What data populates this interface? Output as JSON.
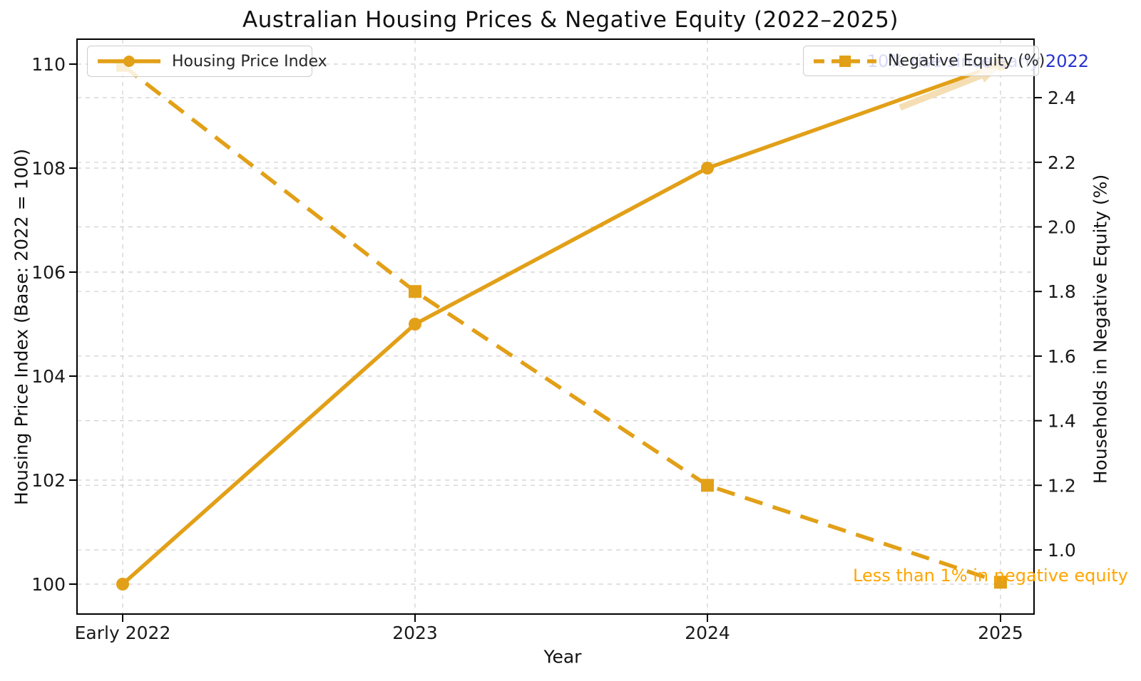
{
  "chart_data": {
    "type": "line",
    "title": "Australian Housing Prices & Negative Equity (2022–2025)",
    "xlabel": "Year",
    "categories": [
      "Early 2022",
      "2023",
      "2024",
      "2025"
    ],
    "series": [
      {
        "name": "Housing Price Index",
        "axis": "left",
        "line_style": "solid",
        "marker": "circle",
        "values": [
          100,
          105,
          108,
          110
        ]
      },
      {
        "name": "Negative Equity (%)",
        "axis": "right",
        "line_style": "dashed",
        "marker": "square",
        "values": [
          2.5,
          1.8,
          1.2,
          0.9
        ]
      }
    ],
    "left_axis": {
      "label": "Housing Price Index (Base: 2022 = 100)",
      "tick_labels": [
        "100",
        "102",
        "104",
        "106",
        "108",
        "110"
      ],
      "ticks": [
        100,
        102,
        104,
        106,
        108,
        110
      ],
      "range": [
        99.3,
        110.5
      ]
    },
    "right_axis": {
      "label": "Households in Negative Equity (%)",
      "tick_labels": [
        "1.0",
        "1.2",
        "1.4",
        "1.6",
        "1.8",
        "2.0",
        "2.2",
        "2.4"
      ],
      "ticks": [
        1.0,
        1.2,
        1.4,
        1.6,
        1.8,
        2.0,
        2.2,
        2.4
      ],
      "range": [
        0.8,
        2.58
      ]
    },
    "annotations": [
      {
        "text": "10% rise since early 2022",
        "color": "#2633d0",
        "position": "top-right"
      },
      {
        "text": "Less than 1% in negative equity",
        "color": "#ffa500",
        "position": "bottom-right"
      }
    ],
    "legend_positions": [
      "upper left",
      "upper right"
    ],
    "grid": true,
    "colors": {
      "series_line": "#e2a018",
      "grid_line": "#cfcfcf",
      "axis_text": "#1a1a1a",
      "arrow": "#f5deb3"
    }
  }
}
